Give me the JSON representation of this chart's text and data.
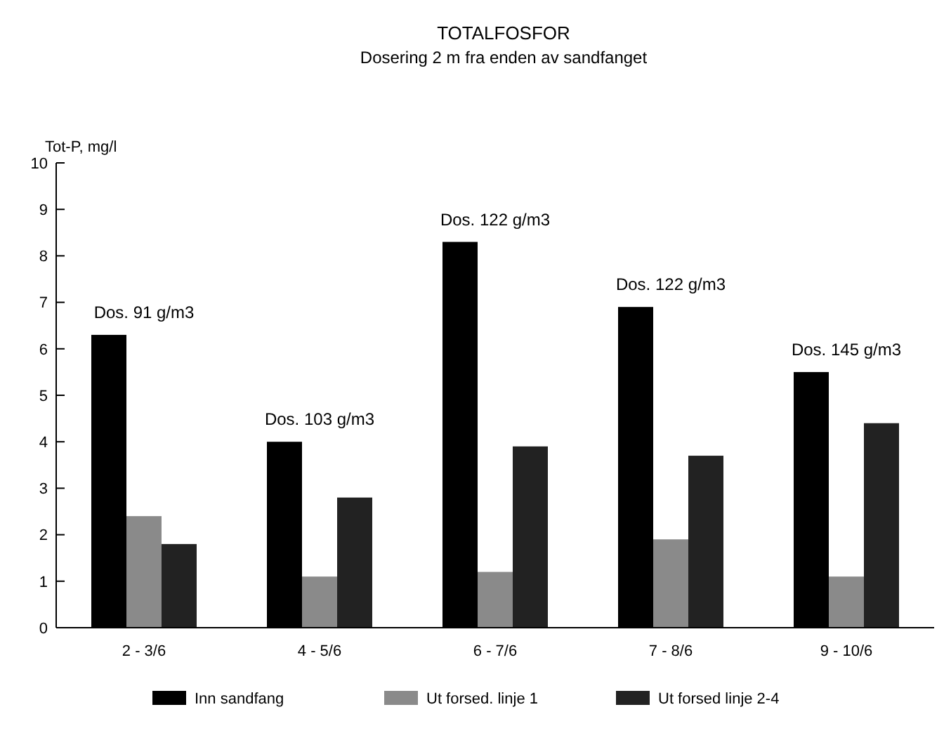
{
  "chart_data": {
    "type": "bar",
    "title": "TOTALFOSFOR",
    "subtitle": "Dosering 2 m fra enden av sandfanget",
    "ylabel": "Tot-P, mg/l",
    "categories": [
      "2 - 3/6",
      "4 - 5/6",
      "6 - 7/6",
      "7 - 8/6",
      "9 - 10/6"
    ],
    "series": [
      {
        "name": "Inn sandfang",
        "color": "#000000",
        "values": [
          6.3,
          4.0,
          8.3,
          6.9,
          5.5
        ]
      },
      {
        "name": "Ut forsed. linje 1",
        "color": "#8a8a8a",
        "values": [
          2.4,
          1.1,
          1.2,
          1.9,
          1.1
        ]
      },
      {
        "name": "Ut forsed linje 2-4",
        "color": "#222222",
        "values": [
          1.8,
          2.8,
          3.9,
          3.7,
          4.4
        ]
      }
    ],
    "ylim": [
      0,
      10
    ],
    "yticks": [
      0,
      1,
      2,
      3,
      4,
      5,
      6,
      7,
      8,
      9,
      10
    ],
    "legend": "bottom",
    "annotations": [
      "Dos. 91 g/m3",
      "Dos. 103 g/m3",
      "Dos. 122 g/m3",
      "Dos. 122 g/m3",
      "Dos. 145 g/m3"
    ]
  }
}
